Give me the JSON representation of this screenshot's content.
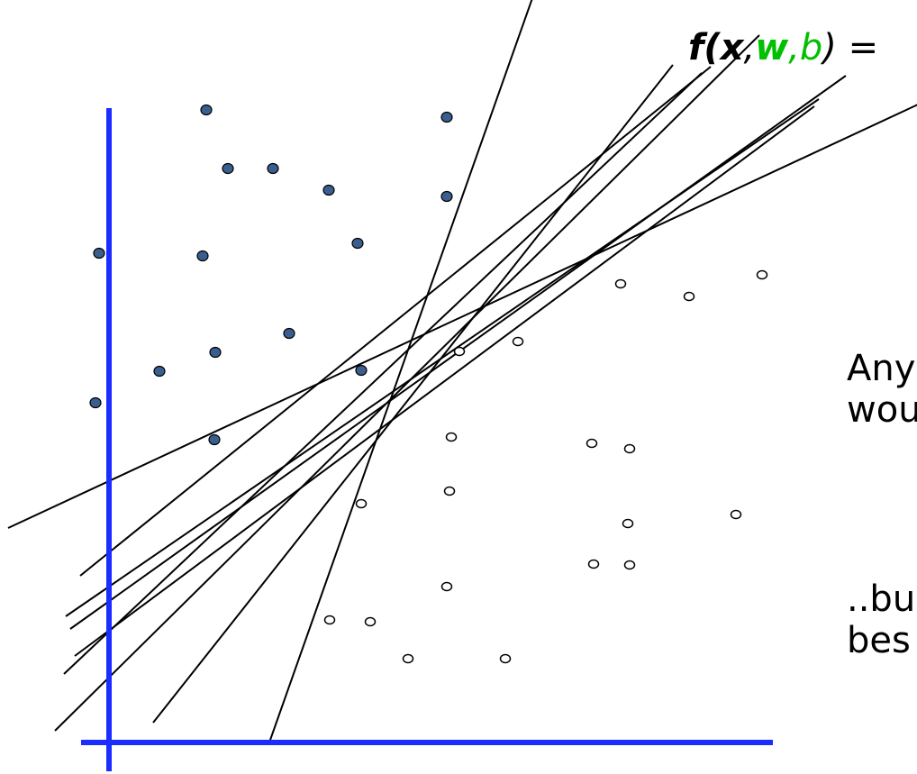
{
  "formula": {
    "f": "f",
    "open_paren": "(",
    "x": "x",
    "comma1": ",",
    "w": "w",
    "comma2": ",",
    "b": "b",
    "close": ") ="
  },
  "captions": {
    "line1": "Any",
    "line2": "wou",
    "line3": "..bu",
    "line4": "bes"
  },
  "colors": {
    "axes": "#1a2cff",
    "filled_point": "#3a5f8f",
    "hollow_point": "#ffffff",
    "lines": "#000000",
    "w_highlight": "#00c000"
  },
  "chart_data": {
    "type": "scatter",
    "title": "",
    "xlabel": "",
    "ylabel": "",
    "xlim": [
      -112,
      898
    ],
    "ylim": [
      -36,
      824
    ],
    "series": [
      {
        "marker": "filled",
        "points": [
          [
            -11,
            543
          ],
          [
            108,
            702
          ],
          [
            132,
            637
          ],
          [
            182,
            637
          ],
          [
            244,
            613
          ],
          [
            276,
            554
          ],
          [
            375,
            694
          ],
          [
            375,
            606
          ],
          [
            104,
            540
          ],
          [
            -15,
            377
          ],
          [
            56,
            412
          ],
          [
            118,
            433
          ],
          [
            200,
            454
          ],
          [
            280,
            413
          ],
          [
            117,
            336
          ]
        ]
      },
      {
        "marker": "hollow",
        "points": [
          [
            725,
            519
          ],
          [
            568,
            509
          ],
          [
            644,
            495
          ],
          [
            454,
            445
          ],
          [
            389,
            434
          ],
          [
            380,
            339
          ],
          [
            536,
            332
          ],
          [
            578,
            326
          ],
          [
            378,
            279
          ],
          [
            280,
            265
          ],
          [
            576,
            243
          ],
          [
            696,
            253
          ],
          [
            538,
            198
          ],
          [
            578,
            197
          ],
          [
            375,
            173
          ],
          [
            245,
            136
          ],
          [
            290,
            134
          ],
          [
            332,
            93
          ],
          [
            440,
            93
          ]
        ]
      }
    ],
    "lines": [
      [
        [
          -112,
          238
        ],
        [
          898,
          708
        ]
      ],
      [
        [
          -60,
          13
        ],
        [
          722,
          785
        ]
      ],
      [
        [
          178,
          0
        ],
        [
          482,
          860
        ]
      ],
      [
        [
          -50,
          76
        ],
        [
          658,
          743
        ]
      ],
      [
        [
          -32,
          185
        ],
        [
          668,
          750
        ]
      ],
      [
        [
          -48,
          140
        ],
        [
          788,
          714
        ]
      ],
      [
        [
          -43,
          126
        ],
        [
          818,
          740
        ]
      ],
      [
        [
          -38,
          96
        ],
        [
          783,
          706
        ]
      ],
      [
        [
          49,
          22
        ],
        [
          626,
          752
        ]
      ]
    ]
  }
}
